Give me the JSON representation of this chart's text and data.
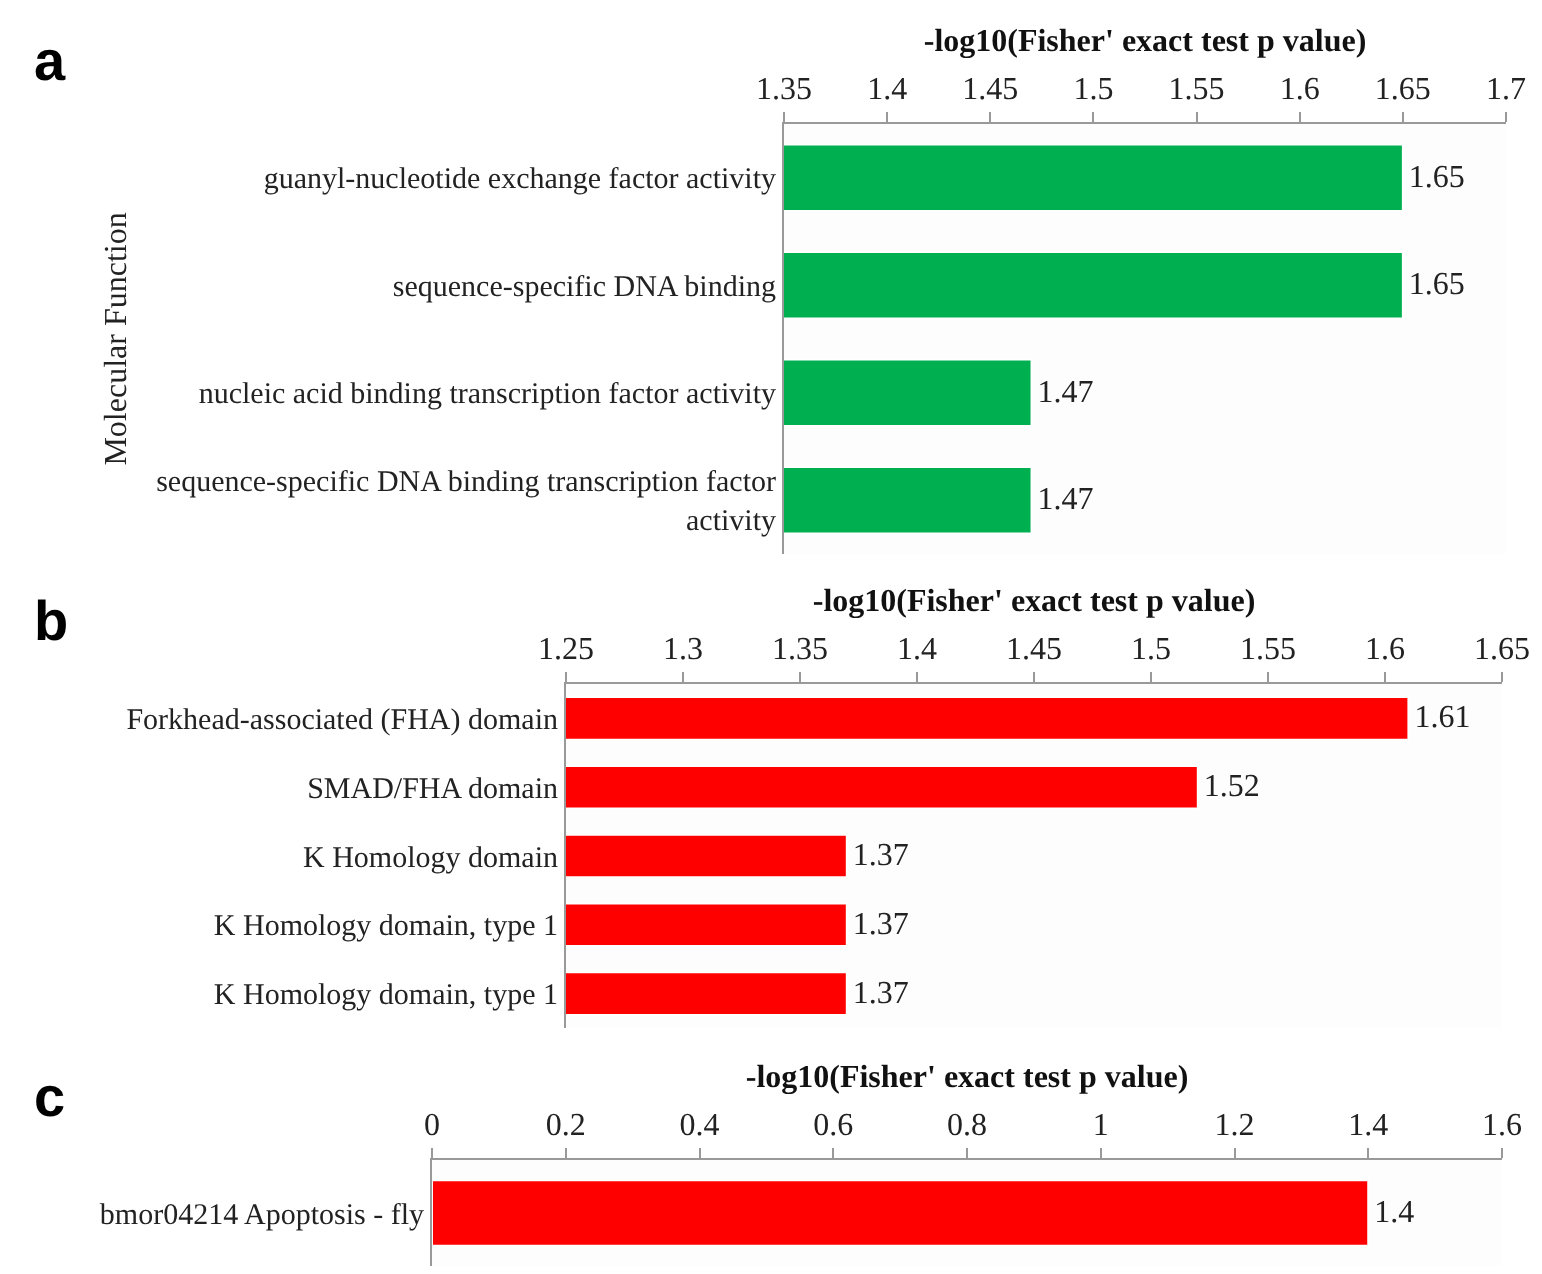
{
  "chart_data": [
    {
      "type": "bar",
      "orientation": "horizontal",
      "xlabel": "-log10(Fisher' exact test p value)",
      "ylabel": "Molecular Function",
      "annotations": [
        "a"
      ],
      "categories": [
        "guanyl-nucleotide exchange factor activity",
        "sequence-specific DNA binding",
        "nucleic acid binding transcription factor activity",
        "sequence-specific DNA binding transcription factor activity"
      ],
      "values": [
        1.65,
        1.65,
        1.47,
        1.47
      ],
      "color": "#00b050",
      "xlim": [
        1.35,
        1.7
      ],
      "xticks": [
        1.35,
        1.4,
        1.45,
        1.5,
        1.55,
        1.6,
        1.65,
        1.7
      ],
      "data_labels": true
    },
    {
      "type": "bar",
      "orientation": "horizontal",
      "xlabel": "-log10(Fisher' exact test p value)",
      "annotations": [
        "b"
      ],
      "categories": [
        "Forkhead-associated (FHA) domain",
        "SMAD/FHA domain",
        "K Homology domain",
        "K Homology domain, type 1",
        "K Homology domain, type 1"
      ],
      "values": [
        1.61,
        1.52,
        1.37,
        1.37,
        1.37
      ],
      "color": "#ff0000",
      "xlim": [
        1.25,
        1.65
      ],
      "xticks": [
        1.25,
        1.3,
        1.35,
        1.4,
        1.45,
        1.5,
        1.55,
        1.6,
        1.65
      ],
      "data_labels": true
    },
    {
      "type": "bar",
      "orientation": "horizontal",
      "xlabel": "-log10(Fisher' exact test p value)",
      "annotations": [
        "c"
      ],
      "categories": [
        "bmor04214 Apoptosis - fly"
      ],
      "values": [
        1.4
      ],
      "color": "#ff0000",
      "xlim": [
        0,
        1.6
      ],
      "xticks": [
        0,
        0.2,
        0.4,
        0.6,
        0.8,
        1,
        1.2,
        1.4,
        1.6
      ],
      "data_labels": true
    }
  ]
}
